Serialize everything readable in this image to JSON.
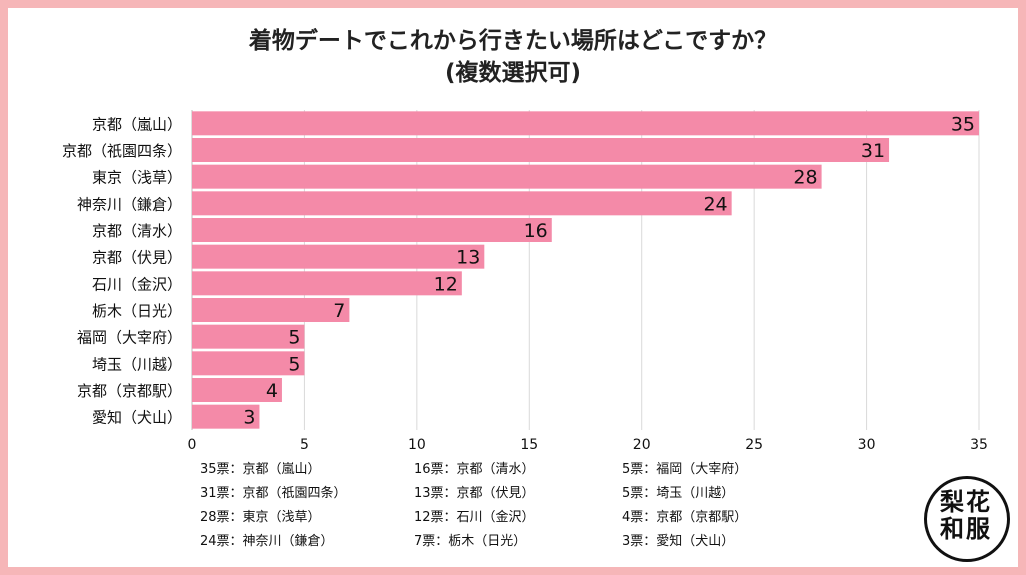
{
  "title_line1": "着物デートでこれから行きたい場所はどこですか？",
  "title_line2": "(複数選択可)",
  "colors": {
    "bar": "#f48aa8",
    "frame": "#f6b6b8",
    "grid": "#d9d9d9",
    "text": "#111111"
  },
  "chart_data": {
    "type": "bar",
    "orientation": "horizontal",
    "title": "着物デートでこれから行きたい場所はどこですか？ (複数選択可)",
    "categories": [
      "京都（嵐山）",
      "京都（祇園四条）",
      "東京（浅草）",
      "神奈川（鎌倉）",
      "京都（清水）",
      "京都（伏見）",
      "石川（金沢）",
      "栃木（日光）",
      "福岡（大宰府）",
      "埼玉（川越）",
      "京都（京都駅）",
      "愛知（犬山）"
    ],
    "values": [
      35,
      31,
      28,
      24,
      16,
      13,
      12,
      7,
      5,
      5,
      4,
      3
    ],
    "xlim": [
      0,
      35
    ],
    "xticks": [
      0,
      5,
      10,
      15,
      20,
      25,
      30,
      35
    ],
    "grid": true,
    "xlabel": "",
    "ylabel": ""
  },
  "summary": [
    [
      "35票：京都（嵐山）",
      "31票：京都（祇園四条）",
      "28票：東京（浅草）",
      "24票：神奈川（鎌倉）"
    ],
    [
      "16票：京都（清水）",
      "13票：京都（伏見）",
      "12票：石川（金沢）",
      "7票：栃木（日光）"
    ],
    [
      "5票：福岡（大宰府）",
      "5票：埼玉（川越）",
      "4票：京都（京都駅）",
      "3票：愛知（犬山）"
    ]
  ],
  "logo": {
    "chars": [
      "梨",
      "花",
      "和",
      "服"
    ]
  }
}
